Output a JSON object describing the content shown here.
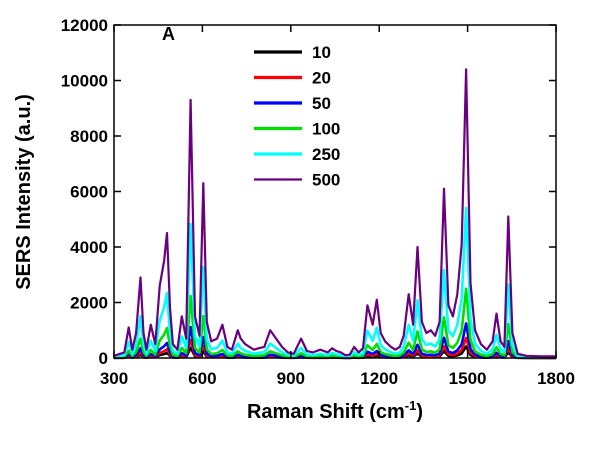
{
  "chart_data": {
    "type": "line",
    "panel_label": "A",
    "xlabel": "Raman Shift (cm",
    "xlabel_sup": "-1",
    "xlabel_end": ")",
    "ylabel": "SERS Intensity (a.u.)",
    "xlim": [
      300,
      1800
    ],
    "ylim": [
      0,
      12000
    ],
    "x_ticks": [
      300,
      600,
      900,
      1200,
      1500,
      1800
    ],
    "y_ticks": [
      0,
      2000,
      4000,
      6000,
      8000,
      10000,
      12000
    ],
    "grid": false,
    "legend_position": "top-center",
    "reference_spectrum": {
      "note_units": "x in cm-1, y in a.u. (500 series)",
      "x": [
        300,
        335,
        350,
        362,
        375,
        390,
        400,
        410,
        425,
        440,
        455,
        470,
        480,
        490,
        500,
        515,
        530,
        545,
        560,
        575,
        590,
        603,
        615,
        630,
        650,
        668,
        685,
        700,
        720,
        730,
        745,
        760,
        775,
        790,
        810,
        830,
        850,
        870,
        890,
        910,
        935,
        955,
        975,
        1000,
        1025,
        1040,
        1055,
        1070,
        1085,
        1100,
        1115,
        1130,
        1145,
        1160,
        1178,
        1192,
        1205,
        1220,
        1240,
        1255,
        1270,
        1283,
        1300,
        1315,
        1330,
        1345,
        1360,
        1375,
        1390,
        1405,
        1420,
        1435,
        1450,
        1465,
        1480,
        1495,
        1510,
        1525,
        1545,
        1565,
        1585,
        1598,
        1612,
        1625,
        1638,
        1652,
        1670,
        1700,
        1750,
        1800
      ],
      "y": [
        80,
        200,
        1100,
        300,
        900,
        2900,
        900,
        300,
        1200,
        500,
        2600,
        3500,
        4500,
        1800,
        500,
        300,
        1500,
        700,
        9300,
        1500,
        800,
        6300,
        1300,
        600,
        700,
        1200,
        400,
        300,
        1000,
        700,
        500,
        400,
        300,
        350,
        400,
        1000,
        700,
        400,
        200,
        150,
        700,
        250,
        200,
        300,
        200,
        350,
        250,
        200,
        100,
        120,
        400,
        200,
        350,
        1900,
        1200,
        2100,
        900,
        600,
        400,
        300,
        400,
        800,
        2300,
        1200,
        4000,
        1300,
        900,
        1000,
        800,
        1300,
        6100,
        1900,
        1500,
        2300,
        4100,
        10400,
        2700,
        1000,
        500,
        300,
        600,
        1600,
        600,
        400,
        5100,
        900,
        150,
        80,
        60,
        60
      ]
    },
    "series": [
      {
        "name": "10",
        "scale": 0.04
      },
      {
        "name": "20",
        "scale": 0.07
      },
      {
        "name": "50",
        "scale": 0.12
      },
      {
        "name": "100",
        "scale": 0.24
      },
      {
        "name": "250",
        "scale": 0.52
      },
      {
        "name": "500",
        "scale": 1.0
      }
    ],
    "colors": [
      "#000000",
      "#ff0000",
      "#0000ff",
      "#00dd00",
      "#00ffff",
      "#6a0080"
    ]
  }
}
